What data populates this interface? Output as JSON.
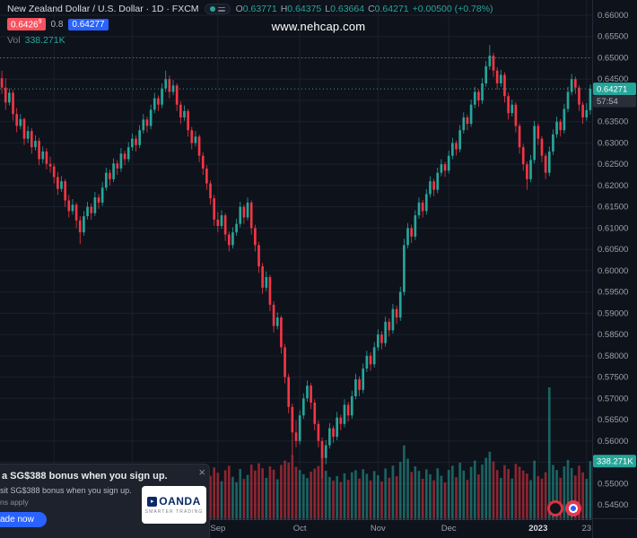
{
  "header": {
    "symbol_line": "New Zealand Dollar / U.S. Dollar · 1D · FXCM",
    "ohlc": {
      "o_label": "O",
      "o": "0.63771",
      "h_label": "H",
      "h": "0.64375",
      "l_label": "L",
      "l": "0.63664",
      "c_label": "C",
      "c": "0.64271",
      "change": "+0.00500 (+0.78%)"
    },
    "bid": "0.6426",
    "bid_sup": "9",
    "spread": "0.8",
    "ask": "0.64277",
    "vol_label": "Vol",
    "vol_value": "338.271K"
  },
  "watermark": "www.nehcap.com",
  "axis_badges": {
    "price": "0.64271",
    "countdown": "57:54",
    "volume": "338.271K"
  },
  "ad": {
    "headline": "a SG$388 bonus when you sign up.",
    "line1": "sit SG$388 bonus when you sign up.",
    "line2": "ns apply",
    "button": "ade now",
    "brand": "OANDA",
    "tagline": "SMARTER TRADING",
    "close": "×"
  },
  "colors": {
    "up": "#26a69a",
    "down": "#f23645",
    "bid": "#f7525f",
    "ask": "#2962ff",
    "grid": "#1a212e",
    "axis_line": "#232a37"
  },
  "chart_data": {
    "type": "candlestick+volume",
    "title": "New Zealand Dollar / U.S. Dollar",
    "timeframe": "1D",
    "exchange": "FXCM",
    "axis": {
      "min": 0.545,
      "max": 0.66,
      "step": 0.005
    },
    "alert_line": 0.65,
    "last_price": 0.64271,
    "vgrid_indices": [
      14,
      35,
      58,
      80,
      101,
      120,
      144,
      157
    ],
    "time_labels": [
      {
        "label": "Sep",
        "index": 58
      },
      {
        "label": "Oct",
        "index": 80
      },
      {
        "label": "Nov",
        "index": 101
      },
      {
        "label": "Dec",
        "index": 120
      },
      {
        "label": "2023",
        "index": 144,
        "emphasis": true
      },
      {
        "label": "23",
        "index": 157
      }
    ],
    "candles": [
      [
        0.6452,
        0.647,
        0.6415,
        0.643,
        228
      ],
      [
        0.643,
        0.6452,
        0.6378,
        0.6395,
        265
      ],
      [
        0.6395,
        0.6428,
        0.6388,
        0.6418,
        204
      ],
      [
        0.6418,
        0.6425,
        0.6352,
        0.6368,
        252
      ],
      [
        0.6368,
        0.6382,
        0.6325,
        0.634,
        231
      ],
      [
        0.634,
        0.6368,
        0.6332,
        0.6356,
        187
      ],
      [
        0.6356,
        0.636,
        0.6295,
        0.631,
        243
      ],
      [
        0.631,
        0.634,
        0.63,
        0.6328,
        198
      ],
      [
        0.6328,
        0.6335,
        0.6275,
        0.629,
        256
      ],
      [
        0.629,
        0.6318,
        0.6282,
        0.6305,
        215
      ],
      [
        0.6305,
        0.6312,
        0.6248,
        0.6262,
        238
      ],
      [
        0.6262,
        0.6292,
        0.6252,
        0.628,
        192
      ],
      [
        0.628,
        0.6288,
        0.6238,
        0.6251,
        226
      ],
      [
        0.6251,
        0.6268,
        0.623,
        0.6245,
        205
      ],
      [
        0.6245,
        0.6252,
        0.6205,
        0.622,
        247
      ],
      [
        0.622,
        0.6232,
        0.6178,
        0.6192,
        233
      ],
      [
        0.6192,
        0.6222,
        0.6185,
        0.621,
        196
      ],
      [
        0.621,
        0.6215,
        0.615,
        0.6165,
        261
      ],
      [
        0.6165,
        0.6178,
        0.6125,
        0.614,
        224
      ],
      [
        0.614,
        0.6168,
        0.6132,
        0.6155,
        189
      ],
      [
        0.6155,
        0.616,
        0.61,
        0.6118,
        252
      ],
      [
        0.6118,
        0.6128,
        0.6062,
        0.609,
        298
      ],
      [
        0.609,
        0.614,
        0.6082,
        0.6128,
        243
      ],
      [
        0.6128,
        0.6162,
        0.612,
        0.615,
        207
      ],
      [
        0.615,
        0.6158,
        0.612,
        0.6135,
        184
      ],
      [
        0.6135,
        0.6185,
        0.6128,
        0.6172,
        216
      ],
      [
        0.6172,
        0.618,
        0.6145,
        0.616,
        193
      ],
      [
        0.616,
        0.6208,
        0.6152,
        0.6195,
        238
      ],
      [
        0.6195,
        0.6242,
        0.6188,
        0.623,
        221
      ],
      [
        0.623,
        0.6238,
        0.62,
        0.6215,
        186
      ],
      [
        0.6215,
        0.6264,
        0.6208,
        0.6252,
        232
      ],
      [
        0.6252,
        0.626,
        0.6225,
        0.624,
        198
      ],
      [
        0.624,
        0.6288,
        0.6232,
        0.6275,
        245
      ],
      [
        0.6275,
        0.6282,
        0.6248,
        0.6262,
        211
      ],
      [
        0.6262,
        0.6302,
        0.6255,
        0.629,
        227
      ],
      [
        0.629,
        0.6322,
        0.6282,
        0.631,
        203
      ],
      [
        0.631,
        0.6318,
        0.628,
        0.6295,
        188
      ],
      [
        0.6295,
        0.6342,
        0.6288,
        0.633,
        235
      ],
      [
        0.633,
        0.6368,
        0.6322,
        0.6355,
        242
      ],
      [
        0.6355,
        0.6362,
        0.6325,
        0.634,
        196
      ],
      [
        0.634,
        0.639,
        0.6332,
        0.6378,
        251
      ],
      [
        0.6378,
        0.6418,
        0.637,
        0.6405,
        218
      ],
      [
        0.6405,
        0.6412,
        0.6375,
        0.639,
        183
      ],
      [
        0.639,
        0.644,
        0.6382,
        0.6428,
        239
      ],
      [
        0.6428,
        0.647,
        0.642,
        0.645,
        264
      ],
      [
        0.645,
        0.6458,
        0.6405,
        0.642,
        229
      ],
      [
        0.642,
        0.6448,
        0.6412,
        0.6435,
        191
      ],
      [
        0.6435,
        0.644,
        0.6375,
        0.639,
        257
      ],
      [
        0.639,
        0.6398,
        0.6345,
        0.636,
        235
      ],
      [
        0.636,
        0.6388,
        0.6352,
        0.6375,
        202
      ],
      [
        0.6375,
        0.638,
        0.6315,
        0.633,
        268
      ],
      [
        0.633,
        0.6338,
        0.6285,
        0.63,
        241
      ],
      [
        0.63,
        0.6328,
        0.6292,
        0.6315,
        209
      ],
      [
        0.6315,
        0.632,
        0.6255,
        0.627,
        277
      ],
      [
        0.627,
        0.6278,
        0.6225,
        0.624,
        246
      ],
      [
        0.624,
        0.6248,
        0.619,
        0.6205,
        288
      ],
      [
        0.6205,
        0.6212,
        0.6155,
        0.617,
        254
      ],
      [
        0.617,
        0.6178,
        0.6105,
        0.612,
        302
      ],
      [
        0.612,
        0.6138,
        0.609,
        0.6105,
        271
      ],
      [
        0.6105,
        0.6142,
        0.6098,
        0.613,
        223
      ],
      [
        0.613,
        0.6135,
        0.607,
        0.6085,
        286
      ],
      [
        0.6085,
        0.6092,
        0.6045,
        0.606,
        312
      ],
      [
        0.606,
        0.6102,
        0.6052,
        0.609,
        248
      ],
      [
        0.609,
        0.6122,
        0.6082,
        0.611,
        217
      ],
      [
        0.611,
        0.6162,
        0.6102,
        0.615,
        293
      ],
      [
        0.615,
        0.6155,
        0.611,
        0.6125,
        236
      ],
      [
        0.6125,
        0.6172,
        0.6118,
        0.616,
        259
      ],
      [
        0.616,
        0.6165,
        0.6085,
        0.61,
        318
      ],
      [
        0.61,
        0.6108,
        0.6045,
        0.606,
        284
      ],
      [
        0.606,
        0.6068,
        0.5995,
        0.601,
        326
      ],
      [
        0.601,
        0.6018,
        0.5945,
        0.596,
        297
      ],
      [
        0.596,
        0.5998,
        0.5952,
        0.5985,
        242
      ],
      [
        0.5985,
        0.599,
        0.5905,
        0.592,
        308
      ],
      [
        0.592,
        0.5928,
        0.5855,
        0.587,
        289
      ],
      [
        0.587,
        0.5902,
        0.5862,
        0.589,
        234
      ],
      [
        0.589,
        0.5895,
        0.5805,
        0.582,
        316
      ],
      [
        0.582,
        0.5828,
        0.5735,
        0.575,
        341
      ],
      [
        0.575,
        0.5758,
        0.5665,
        0.568,
        329
      ],
      [
        0.568,
        0.5688,
        0.5565,
        0.562,
        372
      ],
      [
        0.562,
        0.5648,
        0.5585,
        0.56,
        305
      ],
      [
        0.56,
        0.5672,
        0.5592,
        0.566,
        287
      ],
      [
        0.566,
        0.5712,
        0.5652,
        0.57,
        263
      ],
      [
        0.57,
        0.5742,
        0.5692,
        0.573,
        241
      ],
      [
        0.573,
        0.5736,
        0.5675,
        0.569,
        278
      ],
      [
        0.569,
        0.5698,
        0.5625,
        0.564,
        295
      ],
      [
        0.564,
        0.5648,
        0.5585,
        0.56,
        310
      ],
      [
        0.56,
        0.5608,
        0.5512,
        0.556,
        356
      ],
      [
        0.556,
        0.5602,
        0.5545,
        0.559,
        283
      ],
      [
        0.559,
        0.5642,
        0.5582,
        0.563,
        247
      ],
      [
        0.563,
        0.5636,
        0.5595,
        0.561,
        226
      ],
      [
        0.561,
        0.5668,
        0.5602,
        0.5655,
        252
      ],
      [
        0.5655,
        0.5662,
        0.5625,
        0.564,
        219
      ],
      [
        0.564,
        0.5698,
        0.5632,
        0.5685,
        268
      ],
      [
        0.5685,
        0.5692,
        0.5645,
        0.566,
        231
      ],
      [
        0.566,
        0.5718,
        0.5652,
        0.5705,
        274
      ],
      [
        0.5705,
        0.5758,
        0.5698,
        0.5745,
        286
      ],
      [
        0.5745,
        0.5752,
        0.5705,
        0.572,
        238
      ],
      [
        0.572,
        0.5782,
        0.5712,
        0.577,
        292
      ],
      [
        0.577,
        0.5812,
        0.5762,
        0.58,
        265
      ],
      [
        0.58,
        0.5808,
        0.5765,
        0.578,
        227
      ],
      [
        0.578,
        0.5832,
        0.5772,
        0.582,
        281
      ],
      [
        0.582,
        0.5862,
        0.5812,
        0.585,
        257
      ],
      [
        0.585,
        0.5858,
        0.5815,
        0.583,
        222
      ],
      [
        0.583,
        0.5892,
        0.5822,
        0.588,
        296
      ],
      [
        0.588,
        0.5888,
        0.5845,
        0.586,
        243
      ],
      [
        0.586,
        0.5922,
        0.5852,
        0.591,
        312
      ],
      [
        0.591,
        0.5918,
        0.5875,
        0.589,
        251
      ],
      [
        0.589,
        0.5962,
        0.5882,
        0.595,
        334
      ],
      [
        0.595,
        0.6075,
        0.5942,
        0.606,
        428
      ],
      [
        0.606,
        0.6112,
        0.6052,
        0.61,
        352
      ],
      [
        0.61,
        0.6108,
        0.6065,
        0.608,
        276
      ],
      [
        0.608,
        0.6142,
        0.6072,
        0.613,
        308
      ],
      [
        0.613,
        0.6172,
        0.6122,
        0.616,
        282
      ],
      [
        0.616,
        0.6166,
        0.6125,
        0.614,
        237
      ],
      [
        0.614,
        0.6192,
        0.6132,
        0.618,
        291
      ],
      [
        0.618,
        0.6222,
        0.6172,
        0.621,
        263
      ],
      [
        0.621,
        0.6216,
        0.6175,
        0.619,
        228
      ],
      [
        0.619,
        0.6242,
        0.6182,
        0.623,
        297
      ],
      [
        0.623,
        0.6262,
        0.6222,
        0.625,
        254
      ],
      [
        0.625,
        0.6256,
        0.622,
        0.6235,
        216
      ],
      [
        0.6235,
        0.6282,
        0.6228,
        0.627,
        288
      ],
      [
        0.627,
        0.6312,
        0.6262,
        0.63,
        312
      ],
      [
        0.63,
        0.6306,
        0.627,
        0.6285,
        246
      ],
      [
        0.6285,
        0.6342,
        0.6278,
        0.633,
        329
      ],
      [
        0.633,
        0.6372,
        0.6322,
        0.636,
        284
      ],
      [
        0.636,
        0.6366,
        0.633,
        0.6345,
        231
      ],
      [
        0.6345,
        0.6402,
        0.6338,
        0.639,
        305
      ],
      [
        0.639,
        0.6432,
        0.6382,
        0.642,
        341
      ],
      [
        0.642,
        0.6426,
        0.6385,
        0.64,
        262
      ],
      [
        0.64,
        0.6452,
        0.6392,
        0.644,
        318
      ],
      [
        0.644,
        0.6492,
        0.6432,
        0.648,
        357
      ],
      [
        0.648,
        0.653,
        0.6472,
        0.6505,
        392
      ],
      [
        0.6505,
        0.6512,
        0.6455,
        0.647,
        336
      ],
      [
        0.647,
        0.6478,
        0.6425,
        0.644,
        287
      ],
      [
        0.644,
        0.6472,
        0.6432,
        0.646,
        242
      ],
      [
        0.646,
        0.6466,
        0.6395,
        0.641,
        315
      ],
      [
        0.641,
        0.6418,
        0.6355,
        0.637,
        293
      ],
      [
        0.637,
        0.6402,
        0.6362,
        0.639,
        238
      ],
      [
        0.639,
        0.6396,
        0.6325,
        0.634,
        322
      ],
      [
        0.634,
        0.6346,
        0.6275,
        0.629,
        306
      ],
      [
        0.629,
        0.6298,
        0.6235,
        0.625,
        284
      ],
      [
        0.625,
        0.6256,
        0.619,
        0.6215,
        267
      ],
      [
        0.6215,
        0.6272,
        0.6208,
        0.626,
        229
      ],
      [
        0.626,
        0.6352,
        0.6252,
        0.634,
        341
      ],
      [
        0.634,
        0.6346,
        0.6295,
        0.631,
        252
      ],
      [
        0.631,
        0.6316,
        0.6255,
        0.627,
        238
      ],
      [
        0.627,
        0.6276,
        0.6215,
        0.623,
        274
      ],
      [
        0.623,
        0.6292,
        0.6222,
        0.628,
        761
      ],
      [
        0.628,
        0.6332,
        0.6272,
        0.632,
        316
      ],
      [
        0.632,
        0.6362,
        0.6312,
        0.635,
        287
      ],
      [
        0.635,
        0.6356,
        0.6315,
        0.633,
        243
      ],
      [
        0.633,
        0.6392,
        0.6322,
        0.638,
        308
      ],
      [
        0.638,
        0.6432,
        0.6372,
        0.642,
        345
      ],
      [
        0.642,
        0.6462,
        0.6412,
        0.645,
        298
      ],
      [
        0.645,
        0.6456,
        0.6415,
        0.643,
        256
      ],
      [
        0.643,
        0.6436,
        0.6375,
        0.639,
        312
      ],
      [
        0.639,
        0.6396,
        0.6345,
        0.636,
        274
      ],
      [
        0.636,
        0.6394,
        0.6352,
        0.63771,
        236
      ],
      [
        0.63771,
        0.64375,
        0.63664,
        0.64271,
        338.271
      ]
    ]
  }
}
